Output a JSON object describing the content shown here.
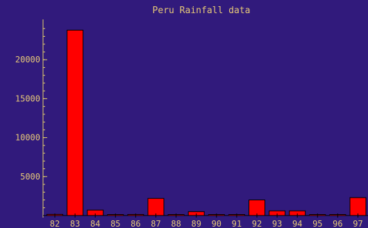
{
  "colors": {
    "background": "#311a7c",
    "axis": "#e6d26a",
    "text": "#e6c878",
    "bar_fill": "#ff0000",
    "bar_stroke": "#000000",
    "baseline": "#000000"
  },
  "chart_data": {
    "type": "bar",
    "title": "Peru Rainfall data",
    "xlabel": "",
    "ylabel": "",
    "categories": [
      "82",
      "83",
      "84",
      "85",
      "86",
      "87",
      "88",
      "89",
      "90",
      "91",
      "92",
      "93",
      "94",
      "95",
      "96",
      "97"
    ],
    "values": [
      150,
      23800,
      700,
      60,
      140,
      2200,
      100,
      500,
      50,
      20,
      2000,
      600,
      600,
      40,
      40,
      2300
    ],
    "ylim": [
      0,
      25000
    ],
    "yticks": [
      5000,
      10000,
      15000,
      20000
    ],
    "ytick_labels": [
      "5000",
      "10000",
      "15000",
      "20000"
    ],
    "grid": false,
    "legend": "none"
  }
}
